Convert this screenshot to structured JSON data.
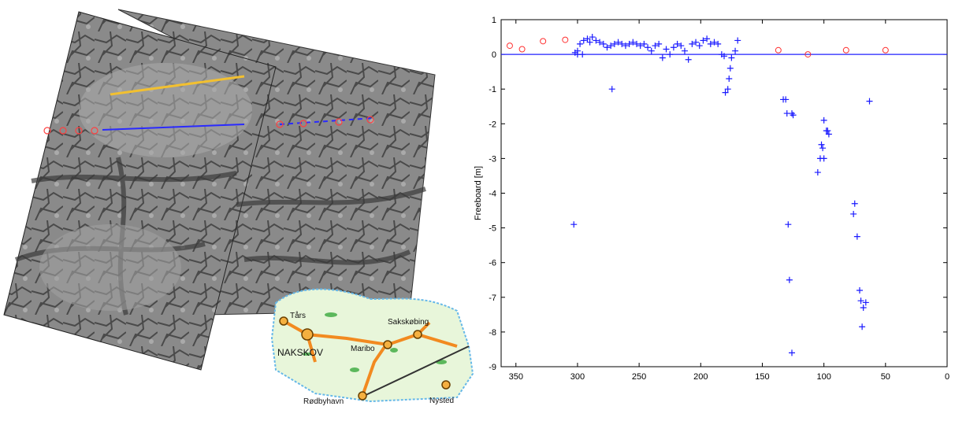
{
  "chart_data": {
    "type": "scatter",
    "ylabel": "Freeboard [m]",
    "xlim": [
      362,
      0
    ],
    "ylim": [
      -9,
      1
    ],
    "xticks": [
      350,
      300,
      250,
      200,
      150,
      100,
      50,
      0
    ],
    "yticks": [
      1,
      0,
      -1,
      -2,
      -3,
      -4,
      -5,
      -6,
      -7,
      -8,
      -9
    ],
    "reference_line": {
      "value": 0,
      "color": "#2020ff"
    },
    "series": [
      {
        "color": "#1a1aff",
        "marker": "+",
        "x": [
          302,
          300,
          298,
          295,
          292,
          290,
          288,
          285,
          282,
          279,
          276,
          273,
          270,
          267,
          264,
          261,
          258,
          255,
          252,
          249,
          246,
          243,
          240,
          237,
          234,
          231,
          228,
          225,
          222,
          219,
          216,
          213,
          210,
          207,
          204,
          201,
          198,
          195,
          192,
          189,
          186,
          183,
          181,
          300,
          296,
          303,
          272,
          180,
          178,
          177,
          176,
          175,
          172,
          170,
          133,
          131,
          130,
          126,
          125,
          129,
          128,
          126,
          100,
          98,
          97,
          96,
          102,
          101,
          103,
          100,
          105,
          75,
          76,
          73,
          71,
          70,
          68,
          69,
          66,
          63
        ],
        "values": [
          0.05,
          0.1,
          0.3,
          0.4,
          0.45,
          0.35,
          0.5,
          0.4,
          0.35,
          0.3,
          0.2,
          0.25,
          0.3,
          0.35,
          0.3,
          0.25,
          0.3,
          0.35,
          0.3,
          0.25,
          0.3,
          0.2,
          0.1,
          0.25,
          0.3,
          -0.1,
          0.15,
          0.0,
          0.2,
          0.3,
          0.25,
          0.1,
          -0.15,
          0.3,
          0.35,
          0.25,
          0.4,
          0.45,
          0.3,
          0.35,
          0.3,
          0.0,
          -0.05,
          0.0,
          0.0,
          -4.9,
          -1.0,
          -1.1,
          -1.0,
          -0.7,
          -0.4,
          -0.1,
          0.1,
          0.4,
          -1.3,
          -1.3,
          -1.7,
          -1.7,
          -1.75,
          -4.9,
          -6.5,
          -8.6,
          -1.9,
          -2.2,
          -2.2,
          -2.3,
          -2.6,
          -2.7,
          -3.0,
          -3.0,
          -3.4,
          -4.3,
          -4.6,
          -5.25,
          -6.8,
          -7.1,
          -7.3,
          -7.85,
          -7.15,
          -1.35
        ]
      },
      {
        "color": "#ff3030",
        "marker": "o",
        "x": [
          355,
          345,
          328,
          310,
          137,
          113,
          82,
          50
        ],
        "values": [
          0.25,
          0.15,
          0.38,
          0.42,
          0.12,
          0.0,
          0.12,
          0.12
        ]
      }
    ]
  },
  "map": {
    "labels": [
      "Tårs",
      "NAKSKOV",
      "Maribo",
      "Sakskøbing",
      "Rødbyhavn",
      "Nysted"
    ]
  }
}
